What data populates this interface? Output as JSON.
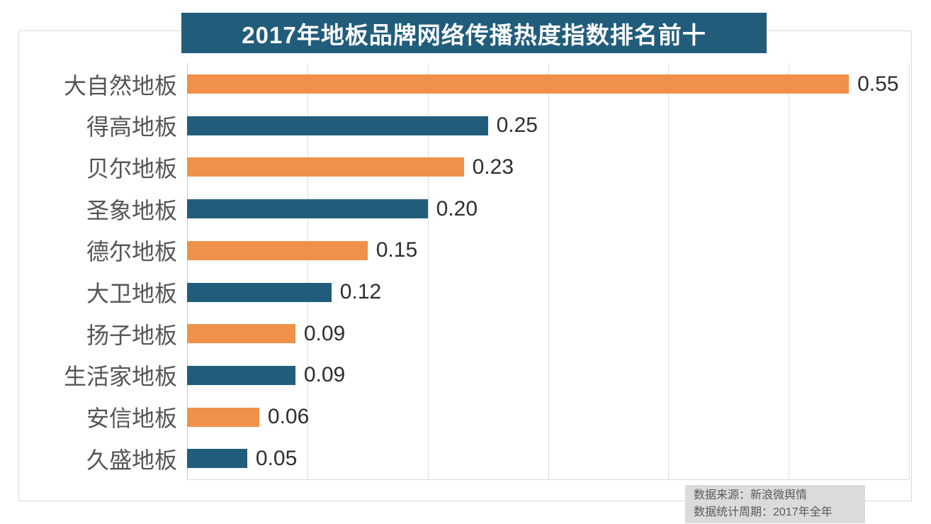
{
  "title": "2017年地板品牌网络传播热度指数排名前十",
  "source_note": {
    "line1": "数据来源：新浪微舆情",
    "line2": "数据统计周期：2017年全年"
  },
  "colors": {
    "banner_bg": "#215d7b",
    "bar_orange": "#ef9149",
    "bar_blue": "#215d7b",
    "gridline": "#dddddd",
    "axis_line": "#c9c9c9",
    "category_text": "#555555",
    "value_text": "#2e2e2e",
    "note_bg": "#dbdbdb",
    "note_text": "#595959"
  },
  "chart_data": {
    "type": "bar",
    "orientation": "horizontal",
    "title": "2017年地板品牌网络传播热度指数排名前十",
    "categories": [
      "大自然地板",
      "得高地板",
      "贝尔地板",
      "圣象地板",
      "德尔地板",
      "大卫地板",
      "扬子地板",
      "生活家地板",
      "安信地板",
      "久盛地板"
    ],
    "values": [
      0.55,
      0.25,
      0.23,
      0.2,
      0.15,
      0.12,
      0.09,
      0.09,
      0.06,
      0.05
    ],
    "value_labels": [
      "0.55",
      "0.25",
      "0.23",
      "0.20",
      "0.15",
      "0.12",
      "0.09",
      "0.09",
      "0.06",
      "0.05"
    ],
    "bar_color_pattern": [
      "orange",
      "blue",
      "orange",
      "blue",
      "orange",
      "blue",
      "orange",
      "blue",
      "orange",
      "blue"
    ],
    "xlabel": "",
    "ylabel": "",
    "xlim": [
      0,
      0.6
    ],
    "gridline_step": 0.1,
    "grid": true,
    "legend_position": "none",
    "data_labels": true
  }
}
